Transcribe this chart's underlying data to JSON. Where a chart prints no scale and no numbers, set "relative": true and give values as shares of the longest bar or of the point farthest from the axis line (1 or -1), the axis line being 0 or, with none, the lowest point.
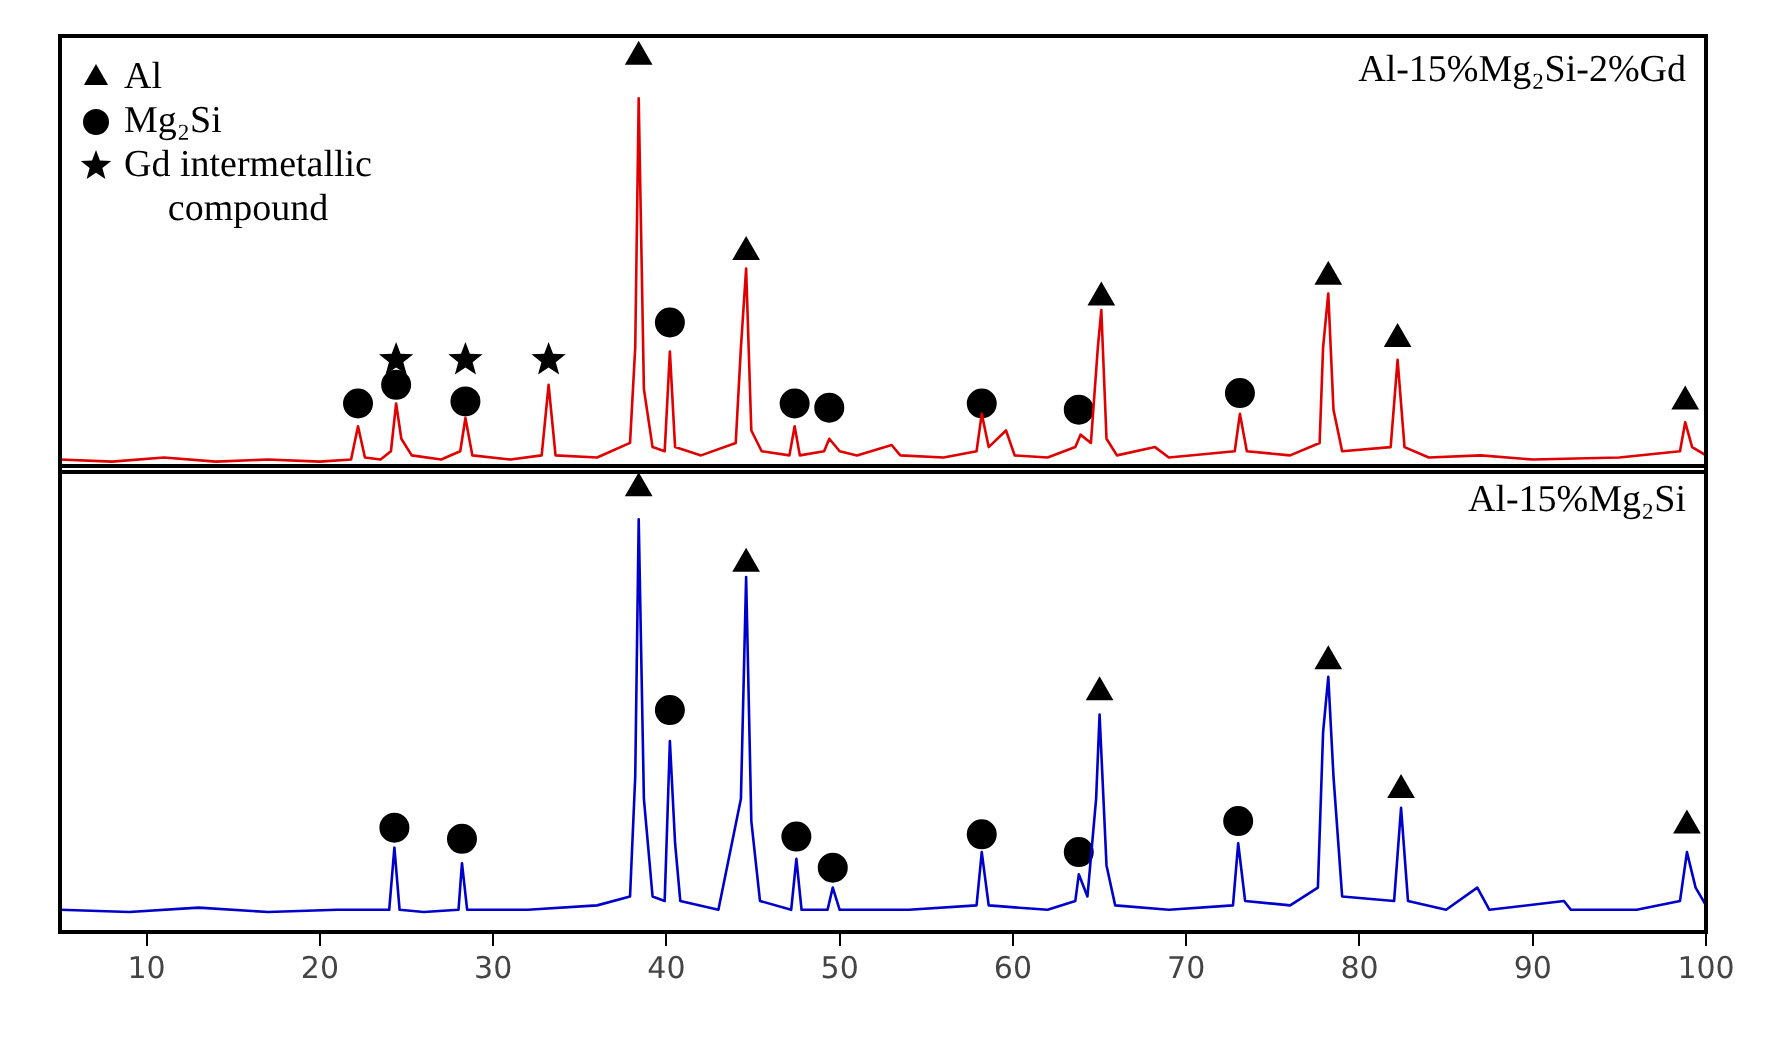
{
  "chart_data": [
    {
      "type": "line",
      "title": "Al-15%Mg₂Si-2%Gd",
      "relative": true,
      "xlim": [
        5,
        100
      ],
      "xticks": [
        10,
        20,
        30,
        40,
        50,
        60,
        70,
        80,
        90,
        100
      ],
      "tick_labels": false,
      "legend": "top left",
      "series": [
        {
          "type": "line",
          "color": "#e00000",
          "marker": "none",
          "x": [
            5,
            8,
            11,
            14,
            17,
            20,
            21.8,
            22.2,
            22.6,
            23.5,
            24.1,
            24.4,
            24.7,
            25.3,
            27,
            28.1,
            28.4,
            28.8,
            31,
            32.8,
            33.2,
            33.6,
            36,
            37.9,
            38.2,
            38.4,
            38.7,
            39.2,
            39.9,
            40.2,
            40.5,
            42,
            44,
            44.3,
            44.6,
            44.9,
            45.5,
            47.1,
            47.4,
            47.7,
            49.1,
            49.4,
            50,
            51,
            53,
            53.5,
            56,
            57.9,
            58.2,
            58.6,
            59.6,
            60.1,
            62,
            63.6,
            63.9,
            64.5,
            64.9,
            65.1,
            65.4,
            66,
            68.2,
            69,
            72.8,
            73.1,
            73.5,
            76,
            77.7,
            77.9,
            78.2,
            78.5,
            79,
            81.8,
            82.2,
            82.6,
            84,
            87,
            90,
            95,
            98.5,
            98.8,
            99.2,
            100
          ],
          "values": [
            0.03,
            0.025,
            0.035,
            0.025,
            0.03,
            0.025,
            0.03,
            0.11,
            0.035,
            0.03,
            0.05,
            0.165,
            0.08,
            0.04,
            0.03,
            0.05,
            0.13,
            0.04,
            0.03,
            0.04,
            0.21,
            0.04,
            0.035,
            0.07,
            0.3,
            0.9,
            0.2,
            0.06,
            0.05,
            0.29,
            0.06,
            0.04,
            0.07,
            0.3,
            0.49,
            0.1,
            0.05,
            0.04,
            0.11,
            0.04,
            0.05,
            0.08,
            0.05,
            0.04,
            0.065,
            0.04,
            0.035,
            0.05,
            0.14,
            0.06,
            0.1,
            0.04,
            0.035,
            0.06,
            0.09,
            0.07,
            0.3,
            0.39,
            0.08,
            0.04,
            0.06,
            0.035,
            0.05,
            0.14,
            0.05,
            0.04,
            0.07,
            0.3,
            0.43,
            0.15,
            0.05,
            0.06,
            0.27,
            0.06,
            0.035,
            0.04,
            0.03,
            0.035,
            0.05,
            0.12,
            0.06,
            0.04
          ]
        },
        {
          "type": "scatter",
          "name": "Al",
          "color": "#000000",
          "marker": "triangle",
          "x": [
            38.4,
            44.6,
            65.1,
            78.2,
            82.2,
            98.8
          ],
          "values": [
            1,
            0.53,
            0.42,
            0.47,
            0.32,
            0.17
          ]
        },
        {
          "type": "scatter",
          "name": "Mg₂Si",
          "color": "#000000",
          "marker": "circle",
          "x": [
            22.2,
            24.4,
            28.4,
            40.2,
            47.4,
            49.4,
            58.2,
            63.8,
            73.1
          ],
          "values": [
            0.165,
            0.21,
            0.17,
            0.36,
            0.165,
            0.155,
            0.165,
            0.15,
            0.19
          ]
        },
        {
          "type": "scatter",
          "name": "Gd intermetallic compound",
          "color": "#000000",
          "marker": "star",
          "x": [
            24.4,
            28.4,
            33.2
          ],
          "values": [
            0.27,
            0.27,
            0.27
          ]
        }
      ]
    },
    {
      "type": "line",
      "title": "Al-15%Mg₂Si",
      "relative": true,
      "xlim": [
        5,
        100
      ],
      "xticks": [
        10,
        20,
        30,
        40,
        50,
        60,
        70,
        80,
        90,
        100
      ],
      "series": [
        {
          "type": "line",
          "color": "#0000cc",
          "marker": "none",
          "x": [
            5,
            9,
            13,
            17,
            21,
            24.0,
            24.3,
            24.6,
            26,
            28.0,
            28.2,
            28.5,
            32,
            36,
            37.9,
            38.2,
            38.4,
            38.7,
            39.2,
            39.9,
            40.2,
            40.5,
            40.8,
            43,
            44.3,
            44.6,
            44.9,
            45.4,
            47.2,
            47.5,
            47.8,
            49.3,
            49.6,
            50,
            54,
            57.9,
            58.2,
            58.6,
            62,
            63.6,
            63.8,
            64.3,
            64.8,
            65.0,
            65.4,
            65.9,
            69,
            72.7,
            73.0,
            73.4,
            76,
            77.6,
            77.9,
            78.2,
            78.5,
            79,
            82.0,
            82.4,
            82.8,
            85,
            86.8,
            87.5,
            91.8,
            92.2,
            96,
            98.5,
            98.9,
            99.4,
            100
          ],
          "values": [
            0.05,
            0.045,
            0.055,
            0.045,
            0.05,
            0.05,
            0.19,
            0.05,
            0.045,
            0.05,
            0.155,
            0.05,
            0.05,
            0.06,
            0.08,
            0.35,
            0.93,
            0.3,
            0.08,
            0.07,
            0.43,
            0.2,
            0.07,
            0.05,
            0.3,
            0.8,
            0.25,
            0.07,
            0.05,
            0.165,
            0.05,
            0.05,
            0.1,
            0.05,
            0.05,
            0.06,
            0.18,
            0.06,
            0.05,
            0.07,
            0.13,
            0.08,
            0.3,
            0.49,
            0.15,
            0.06,
            0.05,
            0.06,
            0.2,
            0.07,
            0.06,
            0.1,
            0.45,
            0.575,
            0.35,
            0.08,
            0.07,
            0.28,
            0.07,
            0.05,
            0.1,
            0.05,
            0.07,
            0.05,
            0.05,
            0.07,
            0.18,
            0.1,
            0.06
          ]
        },
        {
          "type": "scatter",
          "color": "#000000",
          "marker": "triangle",
          "x": [
            38.4,
            44.6,
            65.0,
            78.2,
            82.4,
            98.9
          ],
          "values": [
            1,
            0.83,
            0.54,
            0.61,
            0.32,
            0.24
          ]
        },
        {
          "type": "scatter",
          "color": "#000000",
          "marker": "circle",
          "x": [
            24.3,
            28.2,
            40.2,
            47.5,
            49.6,
            58.2,
            63.8,
            73.0
          ],
          "values": [
            0.235,
            0.21,
            0.5,
            0.215,
            0.145,
            0.22,
            0.18,
            0.25
          ]
        }
      ]
    }
  ]
}
